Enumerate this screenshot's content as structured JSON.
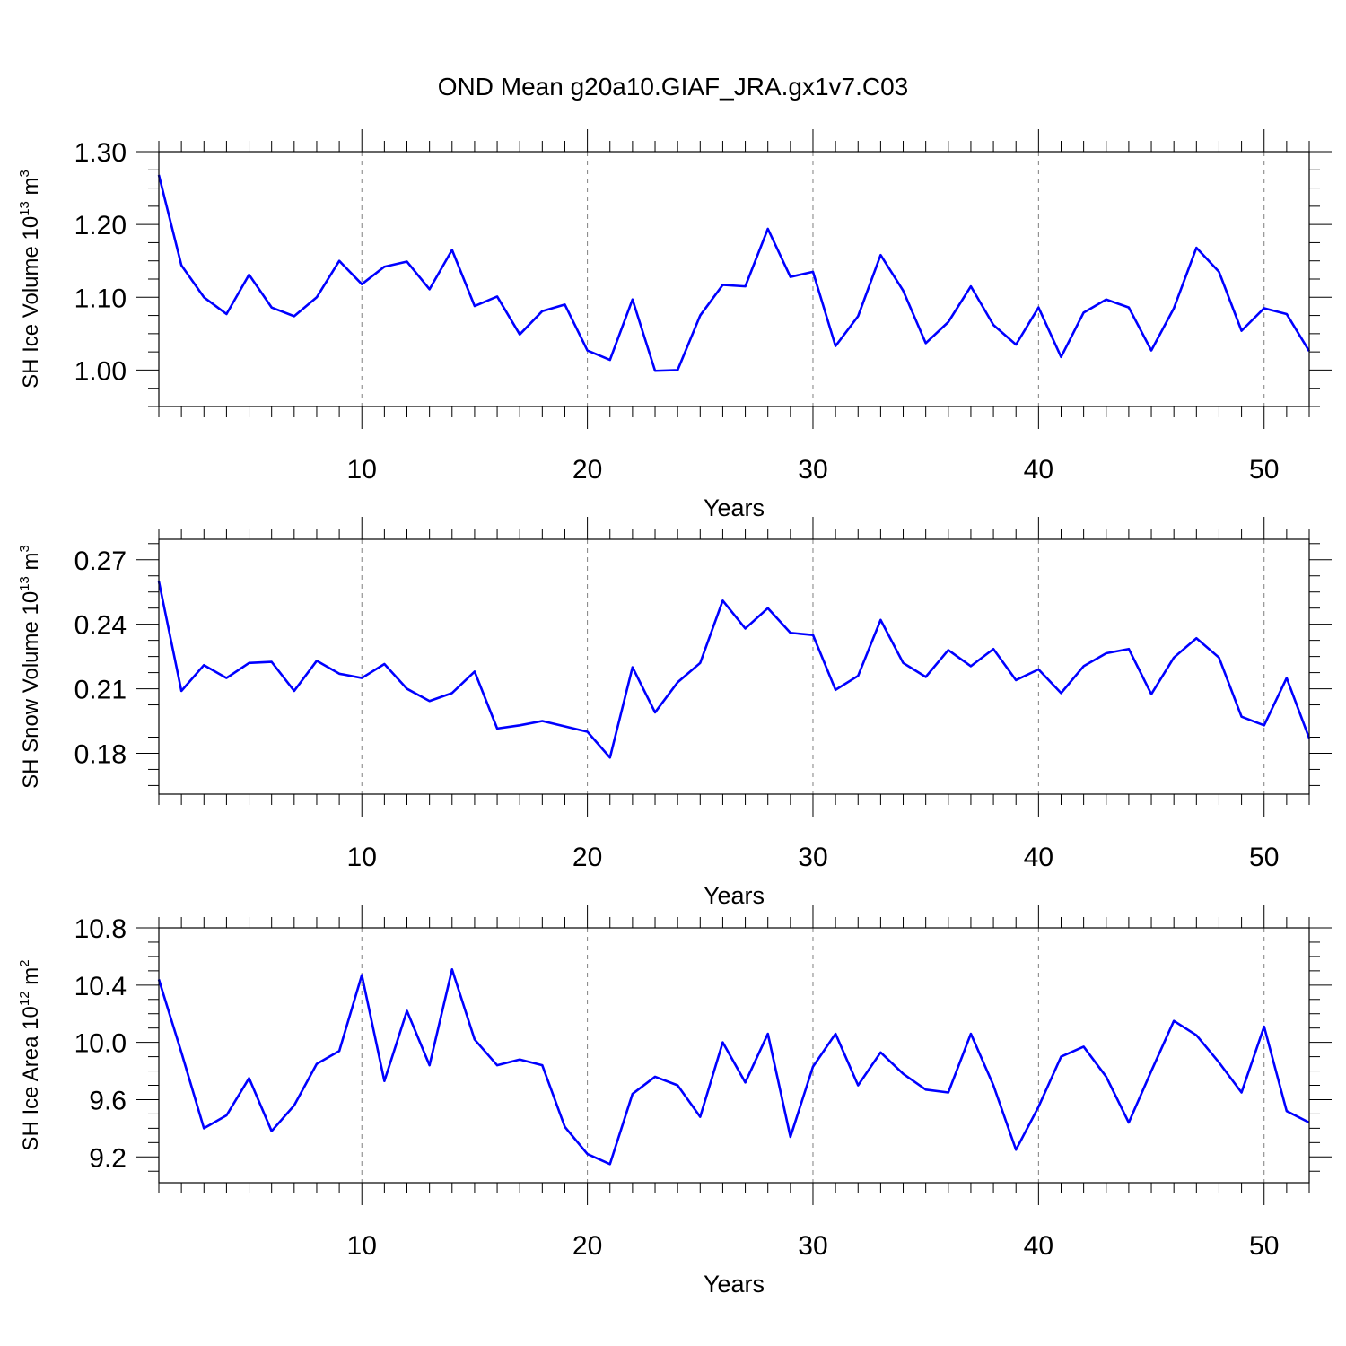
{
  "title": "OND Mean g20a10.GIAF_JRA.gx1v7.C03",
  "colors": {
    "series": "#0000ff",
    "grid": "#808080",
    "axis": "#000000"
  },
  "chart_data": [
    {
      "type": "line",
      "ylabel_main": "SH Ice Volume 10",
      "ylabel_exp": "13",
      "ylabel_unit": " m",
      "ylabel_unit_exp": "3",
      "xlabel": "Years",
      "xlim": [
        1,
        52
      ],
      "ylim": [
        0.95,
        1.3
      ],
      "yticks": [
        1.0,
        1.1,
        1.2,
        1.3
      ],
      "ytick_labels": [
        "1.00",
        "1.10",
        "1.20",
        "1.30"
      ],
      "xticks": [
        10,
        20,
        30,
        40,
        50
      ],
      "xtick_labels": [
        "10",
        "20",
        "30",
        "40",
        "50"
      ],
      "grid_x": true,
      "x": [
        1,
        2,
        3,
        4,
        5,
        6,
        7,
        8,
        9,
        10,
        11,
        12,
        13,
        14,
        15,
        16,
        17,
        18,
        19,
        20,
        21,
        22,
        23,
        24,
        25,
        26,
        27,
        28,
        29,
        30,
        31,
        32,
        33,
        34,
        35,
        36,
        37,
        38,
        39,
        40,
        41,
        42,
        43,
        44,
        45,
        46,
        47,
        48,
        49,
        50,
        51,
        52
      ],
      "series": [
        {
          "name": "SH Ice Volume",
          "values": [
            1.268,
            1.144,
            1.1,
            1.077,
            1.131,
            1.086,
            1.074,
            1.1,
            1.15,
            1.118,
            1.142,
            1.149,
            1.111,
            1.165,
            1.088,
            1.101,
            1.049,
            1.081,
            1.09,
            1.027,
            1.014,
            1.097,
            0.999,
            1.0,
            1.075,
            1.117,
            1.115,
            1.194,
            1.128,
            1.135,
            1.033,
            1.074,
            1.158,
            1.109,
            1.037,
            1.066,
            1.115,
            1.062,
            1.035,
            1.086,
            1.018,
            1.079,
            1.097,
            1.086,
            1.027,
            1.085,
            1.168,
            1.135,
            1.054,
            1.085,
            1.077,
            1.026
          ]
        }
      ]
    },
    {
      "type": "line",
      "ylabel_main": "SH Snow Volume 10",
      "ylabel_exp": "13",
      "ylabel_unit": " m",
      "ylabel_unit_exp": "3",
      "xlabel": "Years",
      "xlim": [
        1,
        52
      ],
      "ylim": [
        0.161,
        0.2795
      ],
      "yticks": [
        0.18,
        0.21,
        0.24,
        0.27
      ],
      "ytick_labels": [
        "0.18",
        "0.21",
        "0.24",
        "0.27"
      ],
      "xticks": [
        10,
        20,
        30,
        40,
        50
      ],
      "xtick_labels": [
        "10",
        "20",
        "30",
        "40",
        "50"
      ],
      "grid_x": true,
      "x": [
        1,
        2,
        3,
        4,
        5,
        6,
        7,
        8,
        9,
        10,
        11,
        12,
        13,
        14,
        15,
        16,
        17,
        18,
        19,
        20,
        21,
        22,
        23,
        24,
        25,
        26,
        27,
        28,
        29,
        30,
        31,
        32,
        33,
        34,
        35,
        36,
        37,
        38,
        39,
        40,
        41,
        42,
        43,
        44,
        45,
        46,
        47,
        48,
        49,
        50,
        51,
        52
      ],
      "series": [
        {
          "name": "SH Snow Volume",
          "values": [
            0.26,
            0.209,
            0.221,
            0.215,
            0.222,
            0.2225,
            0.209,
            0.223,
            0.217,
            0.215,
            0.2215,
            0.21,
            0.2043,
            0.208,
            0.218,
            0.1915,
            0.193,
            0.195,
            0.1925,
            0.19,
            0.178,
            0.22,
            0.199,
            0.213,
            0.222,
            0.251,
            0.238,
            0.2475,
            0.236,
            0.235,
            0.2095,
            0.216,
            0.242,
            0.222,
            0.2155,
            0.228,
            0.2205,
            0.2285,
            0.214,
            0.219,
            0.208,
            0.2205,
            0.2265,
            0.2285,
            0.2075,
            0.2245,
            0.2335,
            0.2245,
            0.197,
            0.193,
            0.215,
            0.187
          ]
        }
      ]
    },
    {
      "type": "line",
      "ylabel_main": "SH Ice Area 10",
      "ylabel_exp": "12",
      "ylabel_unit": " m",
      "ylabel_unit_exp": "2",
      "xlabel": "Years",
      "xlim": [
        1,
        52
      ],
      "ylim": [
        9.02,
        10.8
      ],
      "yticks": [
        9.2,
        9.6,
        10.0,
        10.4,
        10.8
      ],
      "ytick_labels": [
        "9.2",
        "9.6",
        "10.0",
        "10.4",
        "10.8"
      ],
      "xticks": [
        10,
        20,
        30,
        40,
        50
      ],
      "xtick_labels": [
        "10",
        "20",
        "30",
        "40",
        "50"
      ],
      "grid_x": true,
      "x": [
        1,
        2,
        3,
        4,
        5,
        6,
        7,
        8,
        9,
        10,
        11,
        12,
        13,
        14,
        15,
        16,
        17,
        18,
        19,
        20,
        21,
        22,
        23,
        24,
        25,
        26,
        27,
        28,
        29,
        30,
        31,
        32,
        33,
        34,
        35,
        36,
        37,
        38,
        39,
        40,
        41,
        42,
        43,
        44,
        45,
        46,
        47,
        48,
        49,
        50,
        51,
        52
      ],
      "series": [
        {
          "name": "SH Ice Area",
          "values": [
            10.44,
            9.93,
            9.4,
            9.49,
            9.75,
            9.38,
            9.56,
            9.85,
            9.94,
            10.47,
            9.73,
            10.22,
            9.84,
            10.51,
            10.02,
            9.84,
            9.88,
            9.84,
            9.41,
            9.22,
            9.15,
            9.64,
            9.76,
            9.7,
            9.48,
            10.0,
            9.72,
            10.06,
            9.34,
            9.83,
            10.06,
            9.7,
            9.93,
            9.78,
            9.67,
            9.65,
            10.06,
            9.7,
            9.25,
            9.55,
            9.9,
            9.97,
            9.76,
            9.44,
            9.8,
            10.15,
            10.05,
            9.86,
            9.65,
            10.11,
            9.52,
            9.44
          ]
        }
      ]
    }
  ]
}
